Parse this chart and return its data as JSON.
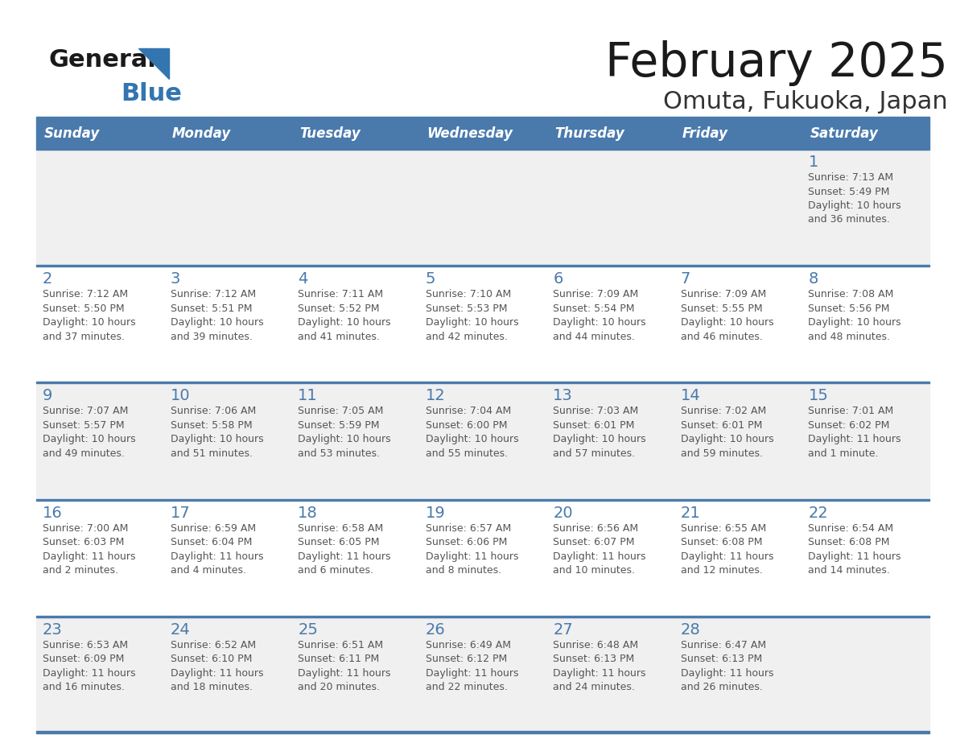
{
  "title": "February 2025",
  "subtitle": "Omuta, Fukuoka, Japan",
  "days_of_week": [
    "Sunday",
    "Monday",
    "Tuesday",
    "Wednesday",
    "Thursday",
    "Friday",
    "Saturday"
  ],
  "header_bg": "#4a7aac",
  "header_text": "#FFFFFF",
  "row_bg_alt": "#f0f0f0",
  "row_bg_main": "#FFFFFF",
  "line_color": "#4a7aac",
  "day_number_color": "#4a7aac",
  "text_color": "#555555",
  "title_color": "#1a1a1a",
  "subtitle_color": "#333333",
  "calendar": [
    [
      null,
      null,
      null,
      null,
      null,
      null,
      {
        "day": "1",
        "sunrise": "7:13 AM",
        "sunset": "5:49 PM",
        "daylight": "10 hours\nand 36 minutes."
      }
    ],
    [
      {
        "day": "2",
        "sunrise": "7:12 AM",
        "sunset": "5:50 PM",
        "daylight": "10 hours\nand 37 minutes."
      },
      {
        "day": "3",
        "sunrise": "7:12 AM",
        "sunset": "5:51 PM",
        "daylight": "10 hours\nand 39 minutes."
      },
      {
        "day": "4",
        "sunrise": "7:11 AM",
        "sunset": "5:52 PM",
        "daylight": "10 hours\nand 41 minutes."
      },
      {
        "day": "5",
        "sunrise": "7:10 AM",
        "sunset": "5:53 PM",
        "daylight": "10 hours\nand 42 minutes."
      },
      {
        "day": "6",
        "sunrise": "7:09 AM",
        "sunset": "5:54 PM",
        "daylight": "10 hours\nand 44 minutes."
      },
      {
        "day": "7",
        "sunrise": "7:09 AM",
        "sunset": "5:55 PM",
        "daylight": "10 hours\nand 46 minutes."
      },
      {
        "day": "8",
        "sunrise": "7:08 AM",
        "sunset": "5:56 PM",
        "daylight": "10 hours\nand 48 minutes."
      }
    ],
    [
      {
        "day": "9",
        "sunrise": "7:07 AM",
        "sunset": "5:57 PM",
        "daylight": "10 hours\nand 49 minutes."
      },
      {
        "day": "10",
        "sunrise": "7:06 AM",
        "sunset": "5:58 PM",
        "daylight": "10 hours\nand 51 minutes."
      },
      {
        "day": "11",
        "sunrise": "7:05 AM",
        "sunset": "5:59 PM",
        "daylight": "10 hours\nand 53 minutes."
      },
      {
        "day": "12",
        "sunrise": "7:04 AM",
        "sunset": "6:00 PM",
        "daylight": "10 hours\nand 55 minutes."
      },
      {
        "day": "13",
        "sunrise": "7:03 AM",
        "sunset": "6:01 PM",
        "daylight": "10 hours\nand 57 minutes."
      },
      {
        "day": "14",
        "sunrise": "7:02 AM",
        "sunset": "6:01 PM",
        "daylight": "10 hours\nand 59 minutes."
      },
      {
        "day": "15",
        "sunrise": "7:01 AM",
        "sunset": "6:02 PM",
        "daylight": "11 hours\nand 1 minute."
      }
    ],
    [
      {
        "day": "16",
        "sunrise": "7:00 AM",
        "sunset": "6:03 PM",
        "daylight": "11 hours\nand 2 minutes."
      },
      {
        "day": "17",
        "sunrise": "6:59 AM",
        "sunset": "6:04 PM",
        "daylight": "11 hours\nand 4 minutes."
      },
      {
        "day": "18",
        "sunrise": "6:58 AM",
        "sunset": "6:05 PM",
        "daylight": "11 hours\nand 6 minutes."
      },
      {
        "day": "19",
        "sunrise": "6:57 AM",
        "sunset": "6:06 PM",
        "daylight": "11 hours\nand 8 minutes."
      },
      {
        "day": "20",
        "sunrise": "6:56 AM",
        "sunset": "6:07 PM",
        "daylight": "11 hours\nand 10 minutes."
      },
      {
        "day": "21",
        "sunrise": "6:55 AM",
        "sunset": "6:08 PM",
        "daylight": "11 hours\nand 12 minutes."
      },
      {
        "day": "22",
        "sunrise": "6:54 AM",
        "sunset": "6:08 PM",
        "daylight": "11 hours\nand 14 minutes."
      }
    ],
    [
      {
        "day": "23",
        "sunrise": "6:53 AM",
        "sunset": "6:09 PM",
        "daylight": "11 hours\nand 16 minutes."
      },
      {
        "day": "24",
        "sunrise": "6:52 AM",
        "sunset": "6:10 PM",
        "daylight": "11 hours\nand 18 minutes."
      },
      {
        "day": "25",
        "sunrise": "6:51 AM",
        "sunset": "6:11 PM",
        "daylight": "11 hours\nand 20 minutes."
      },
      {
        "day": "26",
        "sunrise": "6:49 AM",
        "sunset": "6:12 PM",
        "daylight": "11 hours\nand 22 minutes."
      },
      {
        "day": "27",
        "sunrise": "6:48 AM",
        "sunset": "6:13 PM",
        "daylight": "11 hours\nand 24 minutes."
      },
      {
        "day": "28",
        "sunrise": "6:47 AM",
        "sunset": "6:13 PM",
        "daylight": "11 hours\nand 26 minutes."
      },
      null
    ]
  ]
}
